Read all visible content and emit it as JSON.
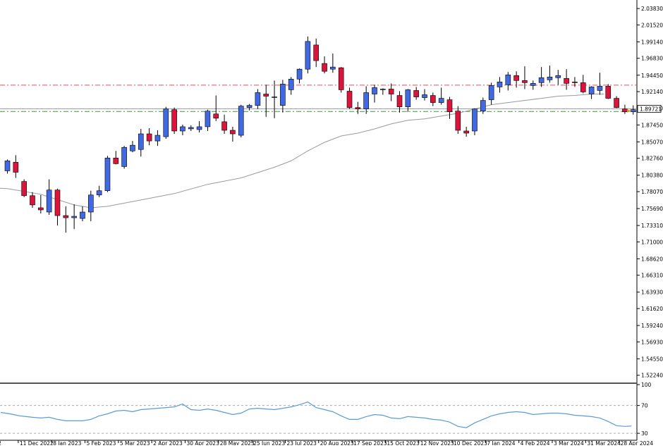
{
  "chart_data": {
    "type": "candlestick",
    "title": "",
    "price_axis": {
      "ylim": [
        1.5122,
        2.0503
      ],
      "ticks": [
        "2.03830",
        "2.01520",
        "1.99140",
        "1.96830",
        "1.94450",
        "1.92140",
        "1.89830",
        "1.87450",
        "1.85070",
        "1.82760",
        "1.80380",
        "1.78070",
        "1.75690",
        "1.73310",
        "1.71000",
        "1.68620",
        "1.66310",
        "1.63930",
        "1.61620",
        "1.59240",
        "1.56930",
        "1.54550",
        "1.52240"
      ],
      "current_price": "1.89721",
      "current_value": 1.8972
    },
    "x_axis": {
      "labels": [
        "2",
        "11 Dec 2022",
        "8 Jan 2023",
        "5 Feb 2023",
        "5 Mar 2023",
        "2 Apr 2023",
        "30 Apr 2023",
        "28 May 2023",
        "25 Jun 2023",
        "23 Jul 2023",
        "20 Aug 2023",
        "17 Sep 2023",
        "15 Oct 2023",
        "12 Nov 2023",
        "10 Dec 2023",
        "7 Jan 2024",
        "4 Feb 2024",
        "3 Mar 2024",
        "31 Mar 2024",
        "28 Apr 2024"
      ],
      "label_bar_index": [
        -1.3,
        1.3,
        5.3,
        9.3,
        13.3,
        17.3,
        21.3,
        25.3,
        29.3,
        33.3,
        37.3,
        41.3,
        45.3,
        49.3,
        53.3,
        57.3,
        61.3,
        65.3,
        69.3,
        73.3
      ]
    },
    "horizontal_lines": [
      {
        "value": 1.9305,
        "style": "dash-dot",
        "color": "#e05050"
      },
      {
        "value": 1.8972,
        "style": "solid",
        "color": "#9aa0a6"
      },
      {
        "value": 1.8935,
        "style": "dash-dot",
        "color": "#3a9a3a"
      }
    ],
    "candles": [
      {
        "o": 1.81,
        "h": 1.826,
        "l": 1.806,
        "c": 1.824
      },
      {
        "o": 1.822,
        "h": 1.832,
        "l": 1.8,
        "c": 1.808
      },
      {
        "o": 1.795,
        "h": 1.798,
        "l": 1.773,
        "c": 1.775
      },
      {
        "o": 1.775,
        "h": 1.78,
        "l": 1.758,
        "c": 1.762
      },
      {
        "o": 1.758,
        "h": 1.776,
        "l": 1.75,
        "c": 1.755
      },
      {
        "o": 1.752,
        "h": 1.798,
        "l": 1.748,
        "c": 1.783
      },
      {
        "o": 1.783,
        "h": 1.785,
        "l": 1.733,
        "c": 1.747
      },
      {
        "o": 1.747,
        "h": 1.76,
        "l": 1.723,
        "c": 1.744
      },
      {
        "o": 1.744,
        "h": 1.763,
        "l": 1.728,
        "c": 1.746
      },
      {
        "o": 1.743,
        "h": 1.76,
        "l": 1.739,
        "c": 1.752
      },
      {
        "o": 1.752,
        "h": 1.782,
        "l": 1.739,
        "c": 1.776
      },
      {
        "o": 1.776,
        "h": 1.789,
        "l": 1.773,
        "c": 1.782
      },
      {
        "o": 1.782,
        "h": 1.831,
        "l": 1.78,
        "c": 1.828
      },
      {
        "o": 1.828,
        "h": 1.838,
        "l": 1.819,
        "c": 1.82
      },
      {
        "o": 1.816,
        "h": 1.845,
        "l": 1.813,
        "c": 1.843
      },
      {
        "o": 1.838,
        "h": 1.852,
        "l": 1.836,
        "c": 1.846
      },
      {
        "o": 1.84,
        "h": 1.869,
        "l": 1.83,
        "c": 1.862
      },
      {
        "o": 1.862,
        "h": 1.87,
        "l": 1.846,
        "c": 1.852
      },
      {
        "o": 1.852,
        "h": 1.867,
        "l": 1.845,
        "c": 1.86
      },
      {
        "o": 1.858,
        "h": 1.9,
        "l": 1.855,
        "c": 1.897
      },
      {
        "o": 1.896,
        "h": 1.899,
        "l": 1.862,
        "c": 1.866
      },
      {
        "o": 1.866,
        "h": 1.875,
        "l": 1.86,
        "c": 1.872
      },
      {
        "o": 1.869,
        "h": 1.874,
        "l": 1.866,
        "c": 1.871
      },
      {
        "o": 1.868,
        "h": 1.88,
        "l": 1.864,
        "c": 1.872
      },
      {
        "o": 1.872,
        "h": 1.896,
        "l": 1.866,
        "c": 1.894
      },
      {
        "o": 1.89,
        "h": 1.916,
        "l": 1.88,
        "c": 1.884
      },
      {
        "o": 1.879,
        "h": 1.889,
        "l": 1.862,
        "c": 1.867
      },
      {
        "o": 1.867,
        "h": 1.872,
        "l": 1.851,
        "c": 1.862
      },
      {
        "o": 1.86,
        "h": 1.903,
        "l": 1.857,
        "c": 1.901
      },
      {
        "o": 1.899,
        "h": 1.904,
        "l": 1.895,
        "c": 1.902
      },
      {
        "o": 1.902,
        "h": 1.925,
        "l": 1.897,
        "c": 1.92
      },
      {
        "o": 1.918,
        "h": 1.931,
        "l": 1.886,
        "c": 1.915
      },
      {
        "o": 1.914,
        "h": 1.937,
        "l": 1.884,
        "c": 1.914
      },
      {
        "o": 1.902,
        "h": 1.938,
        "l": 1.892,
        "c": 1.932
      },
      {
        "o": 1.924,
        "h": 1.942,
        "l": 1.917,
        "c": 1.939
      },
      {
        "o": 1.939,
        "h": 1.954,
        "l": 1.933,
        "c": 1.953
      },
      {
        "o": 1.953,
        "h": 1.999,
        "l": 1.947,
        "c": 1.992
      },
      {
        "o": 1.987,
        "h": 1.996,
        "l": 1.956,
        "c": 1.965
      },
      {
        "o": 1.961,
        "h": 1.971,
        "l": 1.947,
        "c": 1.95
      },
      {
        "o": 1.953,
        "h": 1.975,
        "l": 1.948,
        "c": 1.956
      },
      {
        "o": 1.955,
        "h": 1.956,
        "l": 1.92,
        "c": 1.924
      },
      {
        "o": 1.922,
        "h": 1.927,
        "l": 1.897,
        "c": 1.899
      },
      {
        "o": 1.899,
        "h": 1.907,
        "l": 1.89,
        "c": 1.897
      },
      {
        "o": 1.897,
        "h": 1.929,
        "l": 1.89,
        "c": 1.92
      },
      {
        "o": 1.918,
        "h": 1.931,
        "l": 1.906,
        "c": 1.927
      },
      {
        "o": 1.925,
        "h": 1.926,
        "l": 1.917,
        "c": 1.925
      },
      {
        "o": 1.925,
        "h": 1.933,
        "l": 1.908,
        "c": 1.918
      },
      {
        "o": 1.916,
        "h": 1.922,
        "l": 1.892,
        "c": 1.9
      },
      {
        "o": 1.9,
        "h": 1.925,
        "l": 1.893,
        "c": 1.924
      },
      {
        "o": 1.923,
        "h": 1.928,
        "l": 1.91,
        "c": 1.914
      },
      {
        "o": 1.913,
        "h": 1.925,
        "l": 1.909,
        "c": 1.917
      },
      {
        "o": 1.916,
        "h": 1.92,
        "l": 1.901,
        "c": 1.906
      },
      {
        "o": 1.906,
        "h": 1.927,
        "l": 1.903,
        "c": 1.912
      },
      {
        "o": 1.91,
        "h": 1.914,
        "l": 1.883,
        "c": 1.893
      },
      {
        "o": 1.894,
        "h": 1.901,
        "l": 1.862,
        "c": 1.867
      },
      {
        "o": 1.866,
        "h": 1.872,
        "l": 1.858,
        "c": 1.863
      },
      {
        "o": 1.866,
        "h": 1.898,
        "l": 1.86,
        "c": 1.897
      },
      {
        "o": 1.894,
        "h": 1.913,
        "l": 1.89,
        "c": 1.909
      },
      {
        "o": 1.91,
        "h": 1.934,
        "l": 1.903,
        "c": 1.93
      },
      {
        "o": 1.928,
        "h": 1.942,
        "l": 1.92,
        "c": 1.935
      },
      {
        "o": 1.931,
        "h": 1.949,
        "l": 1.923,
        "c": 1.945
      },
      {
        "o": 1.944,
        "h": 1.95,
        "l": 1.927,
        "c": 1.937
      },
      {
        "o": 1.937,
        "h": 1.957,
        "l": 1.925,
        "c": 1.934
      },
      {
        "o": 1.93,
        "h": 1.937,
        "l": 1.924,
        "c": 1.933
      },
      {
        "o": 1.934,
        "h": 1.956,
        "l": 1.928,
        "c": 1.941
      },
      {
        "o": 1.938,
        "h": 1.958,
        "l": 1.934,
        "c": 1.942
      },
      {
        "o": 1.941,
        "h": 1.952,
        "l": 1.931,
        "c": 1.944
      },
      {
        "o": 1.94,
        "h": 1.953,
        "l": 1.924,
        "c": 1.933
      },
      {
        "o": 1.935,
        "h": 1.942,
        "l": 1.928,
        "c": 1.934
      },
      {
        "o": 1.934,
        "h": 1.945,
        "l": 1.919,
        "c": 1.921
      },
      {
        "o": 1.918,
        "h": 1.929,
        "l": 1.911,
        "c": 1.928
      },
      {
        "o": 1.923,
        "h": 1.948,
        "l": 1.917,
        "c": 1.929
      },
      {
        "o": 1.929,
        "h": 1.932,
        "l": 1.911,
        "c": 1.912
      },
      {
        "o": 1.912,
        "h": 1.915,
        "l": 1.898,
        "c": 1.899
      },
      {
        "o": 1.897,
        "h": 1.903,
        "l": 1.89,
        "c": 1.893
      },
      {
        "o": 1.893,
        "h": 1.902,
        "l": 1.889,
        "c": 1.896
      }
    ],
    "moving_average": [
      [
        -2.0,
        1.786
      ],
      [
        0,
        1.785
      ],
      [
        4,
        1.777
      ],
      [
        8,
        1.762
      ],
      [
        10,
        1.758
      ],
      [
        12,
        1.76
      ],
      [
        16,
        1.769
      ],
      [
        20,
        1.778
      ],
      [
        24,
        1.791
      ],
      [
        28,
        1.8
      ],
      [
        32,
        1.815
      ],
      [
        34,
        1.824
      ],
      [
        36,
        1.838
      ],
      [
        38,
        1.85
      ],
      [
        40,
        1.859
      ],
      [
        42,
        1.863
      ],
      [
        44,
        1.869
      ],
      [
        46,
        1.876
      ],
      [
        48,
        1.881
      ],
      [
        50,
        1.883
      ],
      [
        52,
        1.887
      ],
      [
        54,
        1.891
      ],
      [
        56,
        1.897
      ],
      [
        58,
        1.903
      ],
      [
        60,
        1.906
      ],
      [
        62,
        1.909
      ],
      [
        64,
        1.912
      ],
      [
        66,
        1.915
      ],
      [
        68,
        1.916
      ],
      [
        70,
        1.918
      ],
      [
        71.5,
        1.918
      ]
    ],
    "oscillator": {
      "ylim": [
        20,
        100
      ],
      "ticks": [
        "100",
        "70",
        "30"
      ],
      "levels": [
        70,
        30
      ],
      "values": [
        [
          -0.8,
          60
        ],
        [
          0.3,
          58
        ],
        [
          1.5,
          55
        ],
        [
          3,
          53
        ],
        [
          4,
          52
        ],
        [
          5,
          53
        ],
        [
          6,
          50
        ],
        [
          7,
          48
        ],
        [
          8,
          48
        ],
        [
          9,
          48
        ],
        [
          10,
          50
        ],
        [
          11,
          55
        ],
        [
          12,
          58
        ],
        [
          13,
          62
        ],
        [
          14,
          63
        ],
        [
          15,
          61
        ],
        [
          16,
          64
        ],
        [
          17,
          65
        ],
        [
          18,
          66
        ],
        [
          19,
          67
        ],
        [
          20,
          68
        ],
        [
          21,
          72
        ],
        [
          22,
          64
        ],
        [
          23,
          63
        ],
        [
          24,
          65
        ],
        [
          25,
          63
        ],
        [
          26,
          60
        ],
        [
          27,
          57
        ],
        [
          28,
          59
        ],
        [
          29,
          65
        ],
        [
          30,
          66
        ],
        [
          31,
          65
        ],
        [
          32,
          64
        ],
        [
          33,
          66
        ],
        [
          34,
          68
        ],
        [
          35,
          71
        ],
        [
          36,
          75
        ],
        [
          37,
          67
        ],
        [
          38,
          64
        ],
        [
          39,
          61
        ],
        [
          40,
          55
        ],
        [
          41,
          50
        ],
        [
          42,
          50
        ],
        [
          43,
          54
        ],
        [
          44,
          57
        ],
        [
          45,
          56
        ],
        [
          46,
          52
        ],
        [
          47,
          51
        ],
        [
          48,
          54
        ],
        [
          49,
          53
        ],
        [
          50,
          52
        ],
        [
          51,
          50
        ],
        [
          52,
          49
        ],
        [
          53,
          46
        ],
        [
          54,
          40
        ],
        [
          55,
          38
        ],
        [
          56,
          45
        ],
        [
          57,
          50
        ],
        [
          58,
          55
        ],
        [
          59,
          58
        ],
        [
          60,
          60
        ],
        [
          61,
          61
        ],
        [
          62,
          60
        ],
        [
          63,
          57
        ],
        [
          64,
          58
        ],
        [
          65,
          59
        ],
        [
          66,
          59
        ],
        [
          67,
          58
        ],
        [
          68,
          56
        ],
        [
          69,
          55
        ],
        [
          70,
          54
        ],
        [
          71,
          52
        ],
        [
          72,
          47
        ],
        [
          73,
          41
        ],
        [
          74,
          40
        ],
        [
          74.8,
          40.5
        ]
      ]
    }
  }
}
